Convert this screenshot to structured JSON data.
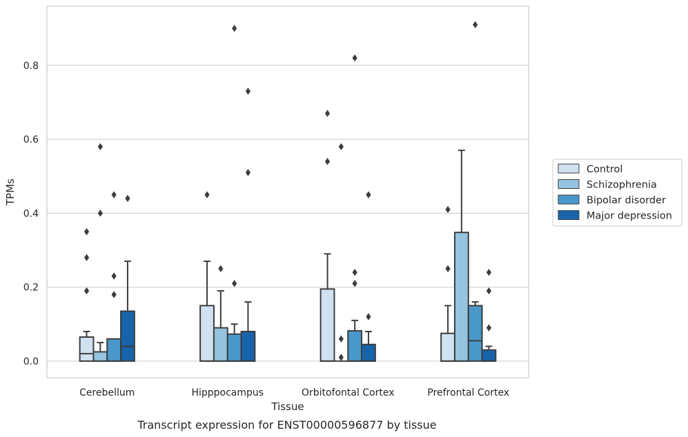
{
  "caption": "Transcript expression for ENST00000596877 by tissue",
  "colors": {
    "Control": "#d0e1f2",
    "Schizophrenia": "#94c4df",
    "Bipolar disorder": "#4a98c9",
    "Major depression": "#1764ab",
    "edge": "#3d3d3d",
    "grid": "#cccccc"
  },
  "chart_data": {
    "type": "box",
    "title": "",
    "xlabel": "Tissue",
    "ylabel": "TPMs",
    "ylim": [
      -0.045,
      0.96
    ],
    "yticks": [
      0.0,
      0.2,
      0.4,
      0.6,
      0.8
    ],
    "ytick_labels": [
      "0.0",
      "0.2",
      "0.4",
      "0.6",
      "0.8"
    ],
    "grid": "horizontal",
    "legend_position": "right",
    "categories": [
      "Cerebellum",
      "Hipppocampus",
      "Orbitofontal Cortex",
      "Prefrontal Cortex"
    ],
    "series": [
      {
        "name": "Control",
        "boxes": [
          {
            "q1": 0.0,
            "median": 0.02,
            "q3": 0.065,
            "whisker_low": 0.0,
            "whisker_high": 0.08,
            "outliers": [
              0.19,
              0.28,
              0.35
            ]
          },
          {
            "q1": 0.0,
            "median": 0.0,
            "q3": 0.15,
            "whisker_low": 0.0,
            "whisker_high": 0.27,
            "outliers": [
              0.45
            ]
          },
          {
            "q1": 0.0,
            "median": 0.0,
            "q3": 0.195,
            "whisker_low": 0.0,
            "whisker_high": 0.29,
            "outliers": [
              0.54,
              0.67
            ]
          },
          {
            "q1": 0.0,
            "median": 0.0,
            "q3": 0.075,
            "whisker_low": 0.0,
            "whisker_high": 0.15,
            "outliers": [
              0.25,
              0.41
            ]
          }
        ]
      },
      {
        "name": "Schizophrenia",
        "boxes": [
          {
            "q1": 0.0,
            "median": 0.0,
            "q3": 0.025,
            "whisker_low": 0.0,
            "whisker_high": 0.05,
            "outliers": [
              0.4,
              0.58
            ]
          },
          {
            "q1": 0.0,
            "median": 0.0,
            "q3": 0.09,
            "whisker_low": 0.0,
            "whisker_high": 0.19,
            "outliers": [
              0.25
            ]
          },
          {
            "q1": 0.0,
            "median": 0.0,
            "q3": 0.0,
            "whisker_low": 0.0,
            "whisker_high": 0.0,
            "outliers": [
              0.01,
              0.06,
              0.58
            ]
          },
          {
            "q1": 0.0,
            "median": 0.0,
            "q3": 0.348,
            "whisker_low": 0.0,
            "whisker_high": 0.57,
            "outliers": []
          }
        ]
      },
      {
        "name": "Bipolar disorder",
        "boxes": [
          {
            "q1": 0.0,
            "median": 0.0,
            "q3": 0.06,
            "whisker_low": 0.0,
            "whisker_high": 0.06,
            "outliers": [
              0.18,
              0.23,
              0.45
            ]
          },
          {
            "q1": 0.0,
            "median": 0.0,
            "q3": 0.073,
            "whisker_low": 0.0,
            "whisker_high": 0.1,
            "outliers": [
              0.21,
              0.9
            ]
          },
          {
            "q1": 0.0,
            "median": 0.0,
            "q3": 0.082,
            "whisker_low": 0.0,
            "whisker_high": 0.11,
            "outliers": [
              0.21,
              0.24,
              0.82
            ]
          },
          {
            "q1": 0.0,
            "median": 0.055,
            "q3": 0.15,
            "whisker_low": 0.0,
            "whisker_high": 0.16,
            "outliers": [
              0.91
            ]
          }
        ]
      },
      {
        "name": "Major depression",
        "boxes": [
          {
            "q1": 0.0,
            "median": 0.04,
            "q3": 0.135,
            "whisker_low": 0.0,
            "whisker_high": 0.27,
            "outliers": [
              0.44
            ]
          },
          {
            "q1": 0.0,
            "median": 0.0,
            "q3": 0.08,
            "whisker_low": 0.0,
            "whisker_high": 0.16,
            "outliers": [
              0.51,
              0.73
            ]
          },
          {
            "q1": 0.0,
            "median": 0.0,
            "q3": 0.045,
            "whisker_low": 0.0,
            "whisker_high": 0.08,
            "outliers": [
              0.12,
              0.45
            ]
          },
          {
            "q1": 0.0,
            "median": 0.0,
            "q3": 0.03,
            "whisker_low": 0.0,
            "whisker_high": 0.04,
            "outliers": [
              0.09,
              0.19,
              0.24
            ]
          }
        ]
      }
    ]
  }
}
